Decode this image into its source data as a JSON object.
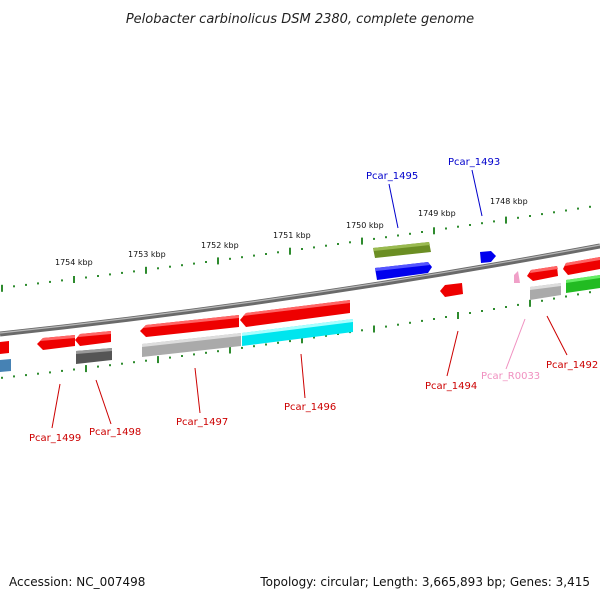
{
  "title": "Pelobacter carbinolicus DSM 2380, complete genome",
  "footer": {
    "accession": "Accession: NC_007498",
    "summary": "Topology: circular; Length: 3,665,893 bp; Genes: 3,415"
  },
  "colors": {
    "backbone": "#7a7a7a",
    "tick": "#2e8b2e",
    "gene_label_red": "#cc0000",
    "gene_label_blue": "#0000cc",
    "gene_label_pink": "#f090c0"
  },
  "scale_labels": [
    "1748 kbp",
    "1749 kbp",
    "1750 kbp",
    "1751 kbp",
    "1752 kbp",
    "1753 kbp",
    "1754 kbp"
  ],
  "gene_labels": [
    {
      "name": "Pcar_1493",
      "color": "#0000cc"
    },
    {
      "name": "Pcar_1495",
      "color": "#0000cc"
    },
    {
      "name": "Pcar_1492",
      "color": "#cc0000"
    },
    {
      "name": "Pcar_R0033",
      "color": "#f090c0"
    },
    {
      "name": "Pcar_1494",
      "color": "#cc0000"
    },
    {
      "name": "Pcar_1496",
      "color": "#cc0000"
    },
    {
      "name": "Pcar_1497",
      "color": "#cc0000"
    },
    {
      "name": "Pcar_1498",
      "color": "#cc0000"
    },
    {
      "name": "Pcar_1499",
      "color": "#cc0000"
    }
  ]
}
